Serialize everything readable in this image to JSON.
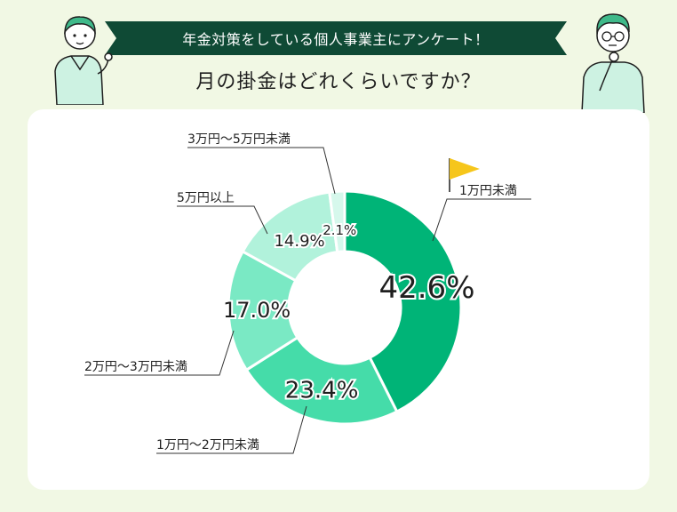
{
  "header": {
    "banner_text": "年金対策をしている個人事業主にアンケート！",
    "question": "月の掛金はどれくらいですか？"
  },
  "colors": {
    "background": "#f1f8e4",
    "banner": "#0f4a35",
    "flag": "#f6c61b"
  },
  "chart_data": {
    "type": "pie",
    "donut": true,
    "categories": [
      "1万円未満",
      "1万円〜2万円未満",
      "2万円〜3万円未満",
      "5万円以上",
      "3万円〜5万円未満"
    ],
    "values": [
      42.6,
      23.4,
      17.0,
      14.9,
      2.1
    ],
    "value_labels": [
      "42.6%",
      "23.4%",
      "17.0%",
      "14.9%",
      "2.1%"
    ],
    "colors": [
      "#00b477",
      "#45dca9",
      "#7ae9c4",
      "#b1f2db",
      "#d6f8ec"
    ],
    "highlight": "1万円未満",
    "unit": "%"
  }
}
